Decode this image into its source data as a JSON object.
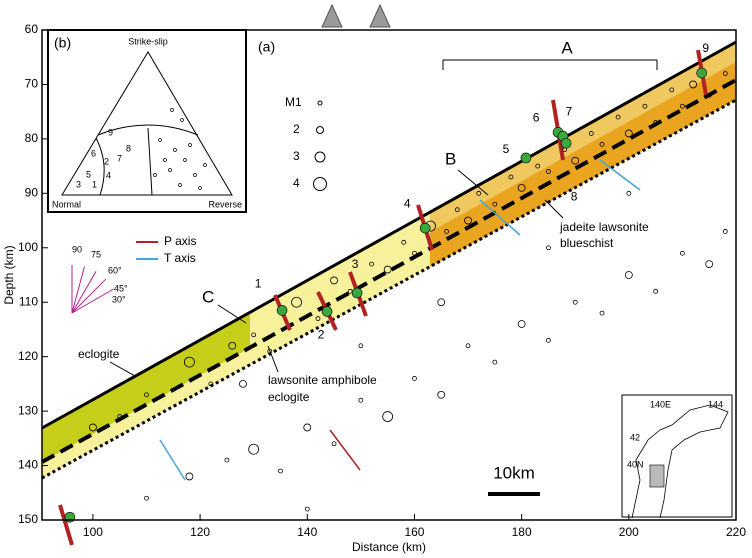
{
  "chart_data": {
    "type": "scatter",
    "panel_label": "(a)",
    "x_label": "Distance (km)",
    "y_label": "Depth (km)",
    "xlim": [
      90.5,
      220
    ],
    "xticks": [
      100,
      120,
      140,
      160,
      180,
      200,
      220
    ],
    "ylim": [
      60,
      150
    ],
    "y_inverted": true,
    "yticks": [
      60,
      70,
      80,
      90,
      100,
      110,
      120,
      130,
      140,
      150
    ],
    "events": {
      "color": "#000000",
      "x": [
        100,
        105,
        110,
        118,
        122,
        126,
        130,
        133,
        138,
        142,
        145,
        148,
        152,
        155,
        158,
        160,
        163,
        166,
        168,
        170,
        172,
        175,
        178,
        180,
        183,
        185,
        188,
        190,
        193,
        195,
        198,
        200,
        203,
        205,
        208,
        210,
        212,
        215,
        218,
        110,
        118,
        125,
        130,
        135,
        140,
        145,
        150,
        155,
        160,
        165,
        170,
        175,
        180,
        185,
        190,
        195,
        200,
        205,
        210,
        215,
        218,
        150,
        165,
        185,
        200,
        128,
        140
      ],
      "y": [
        133,
        131,
        127,
        121,
        125,
        118,
        116,
        119,
        110,
        113,
        106,
        108,
        103,
        104,
        99,
        101,
        96,
        97,
        93,
        95,
        90,
        92,
        87,
        89,
        85,
        86,
        82,
        84,
        79,
        81,
        76,
        79,
        74,
        77,
        71,
        74,
        70,
        72,
        68,
        146,
        142,
        139,
        137,
        141,
        133,
        136,
        128,
        131,
        124,
        127,
        118,
        121,
        114,
        117,
        110,
        112,
        105,
        108,
        101,
        103,
        97,
        118,
        110,
        100,
        90,
        125,
        148
      ],
      "magnitude": [
        2,
        1,
        1,
        3,
        1,
        2,
        1,
        1,
        3,
        1,
        2,
        1,
        1,
        2,
        1,
        1,
        3,
        1,
        1,
        2,
        1,
        1,
        1,
        2,
        1,
        1,
        1,
        2,
        1,
        1,
        1,
        2,
        1,
        1,
        1,
        1,
        2,
        1,
        1,
        1,
        2,
        1,
        3,
        1,
        2,
        1,
        1,
        3,
        1,
        2,
        1,
        1,
        2,
        1,
        1,
        1,
        2,
        1,
        1,
        2,
        1,
        1,
        2,
        1,
        1,
        2,
        1
      ]
    },
    "numbered_events": {
      "color": "#3aa83a",
      "labels": [
        1,
        2,
        3,
        4,
        5,
        6,
        7,
        8,
        9,
        null
      ],
      "x": [
        135.3,
        143.7,
        149.3,
        162.0,
        180.8,
        186.8,
        187.7,
        188.3,
        213.6,
        95.7
      ],
      "y": [
        111.5,
        111.7,
        108.3,
        96.4,
        83.5,
        78.8,
        79.5,
        80.8,
        67.9,
        149.5
      ]
    },
    "magnitude_legend": [
      {
        "value": 1,
        "label": "M1"
      },
      2,
      3,
      4
    ],
    "axis_legend": [
      {
        "name": "P axis",
        "color": "#b22222"
      },
      {
        "name": "T axis",
        "color": "#4aa3d8"
      }
    ],
    "dip_fan": {
      "color": "#b0208f",
      "dips": [
        90,
        75,
        {
          "value": 60,
          "label": "60°"
        },
        {
          "value": 45,
          "label": "45°"
        },
        {
          "value": 30,
          "label": "30°"
        }
      ]
    },
    "annotations": {
      "profile": "A",
      "zone_b": "B",
      "zone_c": "C",
      "eclogite": "eclogite",
      "lawsonite": [
        "lawsonite amphibole",
        "eclogite"
      ],
      "jadeite": [
        "jadeite lawsonite",
        "blueschist"
      ],
      "scale_bar": "10km"
    },
    "inset_ternary": {
      "label": "(b)",
      "top": "Strike-slip",
      "left": "Normal",
      "right": "Reverse",
      "numbers": [
        1,
        2,
        3,
        4,
        5,
        6,
        7,
        8,
        9
      ]
    },
    "inset_map": {
      "labels": [
        "140E",
        "144",
        "42",
        "40N"
      ]
    }
  }
}
